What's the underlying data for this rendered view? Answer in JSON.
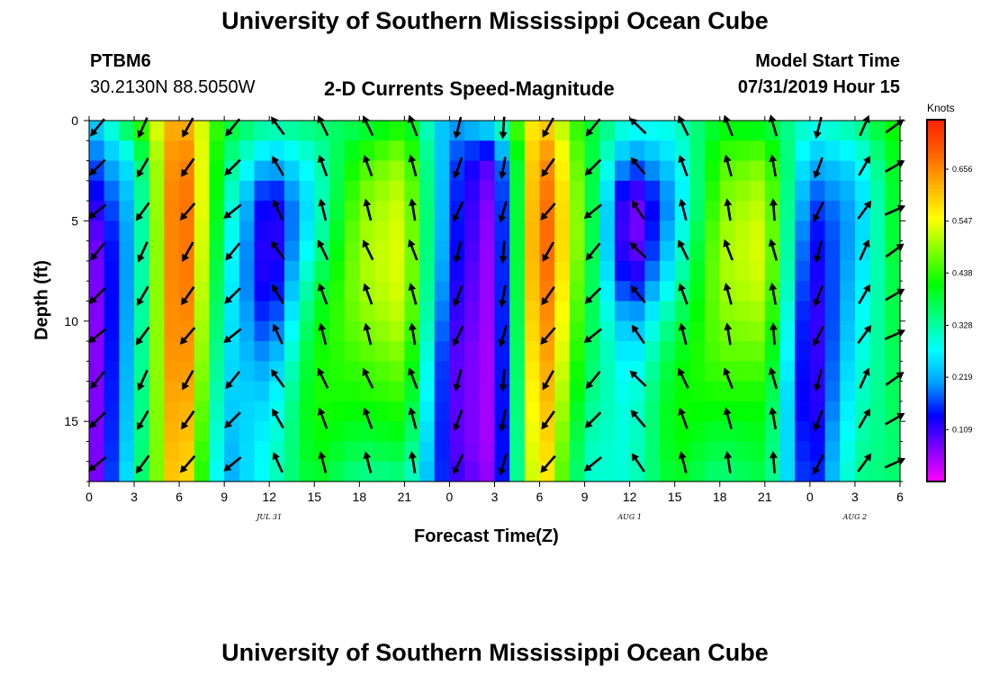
{
  "header": {
    "title": "University of Southern Mississippi Ocean Cube",
    "footer_title": "University of Southern Mississippi Ocean Cube",
    "station_id": "PTBM6",
    "station_coords": "30.2130N 88.5050W",
    "plot_title": "2-D Currents Speed-Magnitude",
    "model_start_label": "Model Start Time",
    "model_start_value": "07/31/2019 Hour 15"
  },
  "chart_data": {
    "type": "heatmap",
    "title": "2-D Currents Speed-Magnitude",
    "xlabel": "Forecast Time(Z)",
    "ylabel": "Depth (ft)",
    "colorbar_label": "Knots",
    "x_ticks": [
      "0",
      "3",
      "6",
      "9",
      "12",
      "15",
      "18",
      "21",
      "0",
      "3",
      "6",
      "9",
      "12",
      "15",
      "18",
      "21",
      "0",
      "3",
      "6"
    ],
    "x_date_labels": [
      {
        "label": "JUL 31",
        "hour_index": 12
      },
      {
        "label": "AUG 1",
        "hour_index": 36
      },
      {
        "label": "AUG 2",
        "hour_index": 51
      }
    ],
    "y_ticks": [
      "0",
      "5",
      "10",
      "15"
    ],
    "ylim": [
      0,
      18
    ],
    "xlim_hours": [
      0,
      54
    ],
    "y_inverted": true,
    "colorbar_ticks": [
      "0.109",
      "0.219",
      "0.328",
      "0.438",
      "0.547",
      "0.656"
    ],
    "colorbar_range": [
      0.0,
      0.76
    ],
    "colorscale": [
      "#ff00ff",
      "#8000ff",
      "#0000ff",
      "#00a0ff",
      "#00ffff",
      "#00ff80",
      "#00ff00",
      "#80ff00",
      "#ffff00",
      "#ffb000",
      "#ff6000",
      "#ff2000"
    ],
    "columns": [
      {
        "hour": 0,
        "speed": [
          0.22,
          0.16,
          0.1,
          0.05,
          0.04,
          0.03,
          0.03,
          0.03,
          0.03,
          0.03
        ],
        "dir": 225
      },
      {
        "hour": 3,
        "speed": [
          0.42,
          0.28,
          0.25,
          0.24,
          0.24,
          0.25,
          0.26,
          0.27,
          0.28,
          0.3
        ],
        "dir": 210
      },
      {
        "hour": 6,
        "speed": [
          0.66,
          0.72,
          0.74,
          0.74,
          0.74,
          0.73,
          0.72,
          0.7,
          0.68,
          0.66
        ],
        "dir": 215
      },
      {
        "hour": 9,
        "speed": [
          0.4,
          0.36,
          0.34,
          0.32,
          0.3,
          0.28,
          0.26,
          0.24,
          0.22,
          0.2
        ],
        "dir": 225
      },
      {
        "hour": 12,
        "speed": [
          0.34,
          0.22,
          0.1,
          0.08,
          0.09,
          0.14,
          0.2,
          0.25,
          0.28,
          0.3
        ],
        "dir": 330
      },
      {
        "hour": 15,
        "speed": [
          0.36,
          0.3,
          0.28,
          0.3,
          0.36,
          0.4,
          0.42,
          0.43,
          0.42,
          0.4
        ],
        "dir": 340
      },
      {
        "hour": 18,
        "speed": [
          0.36,
          0.44,
          0.48,
          0.5,
          0.5,
          0.48,
          0.45,
          0.42,
          0.38,
          0.33
        ],
        "dir": 340
      },
      {
        "hour": 21,
        "speed": [
          0.42,
          0.5,
          0.53,
          0.54,
          0.54,
          0.52,
          0.48,
          0.44,
          0.4,
          0.34
        ],
        "dir": 345
      },
      {
        "hour": 24,
        "speed": [
          0.2,
          0.18,
          0.17,
          0.16,
          0.14,
          0.12,
          0.1,
          0.1,
          0.1,
          0.12
        ],
        "dir": 200
      },
      {
        "hour": 27,
        "speed": [
          0.3,
          0.08,
          0.05,
          0.04,
          0.04,
          0.04,
          0.04,
          0.04,
          0.04,
          0.05
        ],
        "dir": 190
      },
      {
        "hour": 30,
        "speed": [
          0.62,
          0.7,
          0.72,
          0.73,
          0.72,
          0.7,
          0.68,
          0.66,
          0.64,
          0.62
        ],
        "dir": 215
      },
      {
        "hour": 33,
        "speed": [
          0.4,
          0.42,
          0.44,
          0.44,
          0.42,
          0.4,
          0.38,
          0.35,
          0.32,
          0.3
        ],
        "dir": 225
      },
      {
        "hour": 36,
        "speed": [
          0.3,
          0.18,
          0.05,
          0.04,
          0.1,
          0.2,
          0.25,
          0.28,
          0.29,
          0.3
        ],
        "dir": 320
      },
      {
        "hour": 39,
        "speed": [
          0.3,
          0.26,
          0.22,
          0.26,
          0.3,
          0.36,
          0.4,
          0.42,
          0.42,
          0.4
        ],
        "dir": 340
      },
      {
        "hour": 42,
        "speed": [
          0.4,
          0.45,
          0.48,
          0.5,
          0.5,
          0.48,
          0.46,
          0.42,
          0.38,
          0.34
        ],
        "dir": 345
      },
      {
        "hour": 45,
        "speed": [
          0.38,
          0.48,
          0.52,
          0.54,
          0.53,
          0.5,
          0.46,
          0.42,
          0.4,
          0.38
        ],
        "dir": 350
      },
      {
        "hour": 48,
        "speed": [
          0.3,
          0.22,
          0.16,
          0.12,
          0.1,
          0.08,
          0.08,
          0.08,
          0.1,
          0.12
        ],
        "dir": 200
      },
      {
        "hour": 51,
        "speed": [
          0.34,
          0.26,
          0.22,
          0.22,
          0.24,
          0.26,
          0.28,
          0.3,
          0.32,
          0.34
        ],
        "dir": 30
      },
      {
        "hour": 54,
        "speed": [
          0.44,
          0.42,
          0.42,
          0.42,
          0.4,
          0.4,
          0.38,
          0.38,
          0.36,
          0.36
        ],
        "dir": 60
      }
    ]
  }
}
